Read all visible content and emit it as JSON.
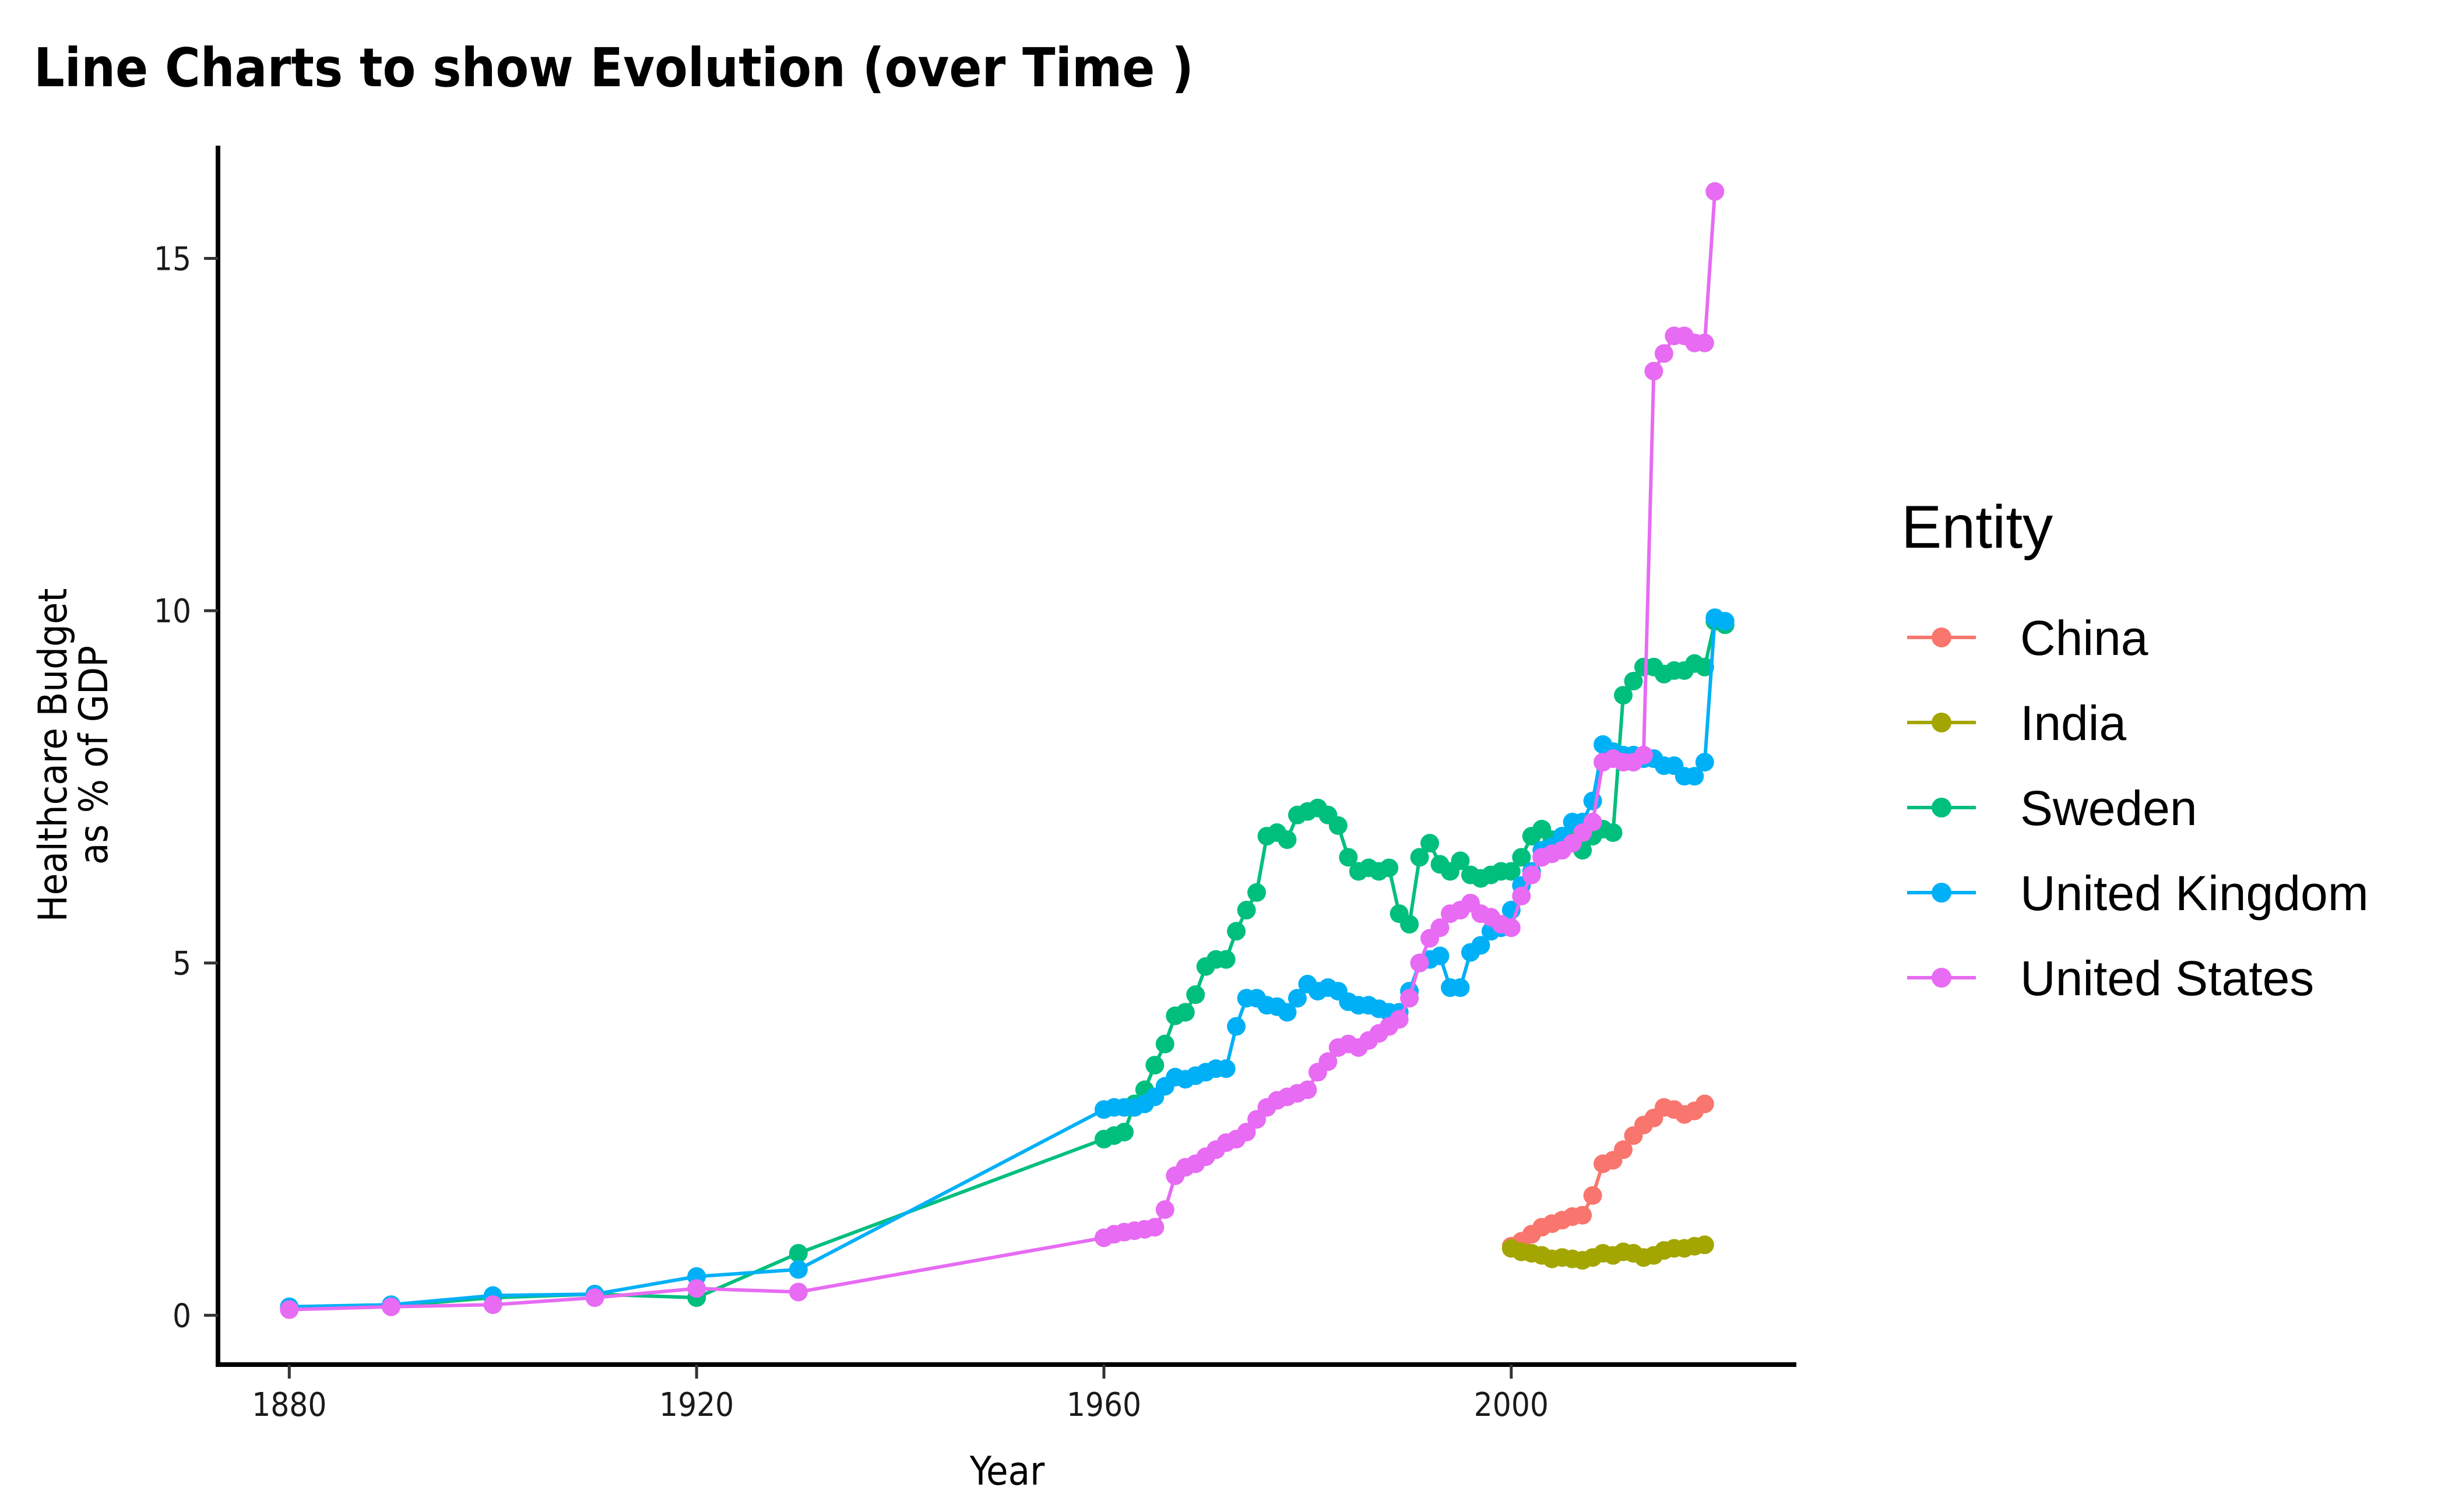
{
  "chart_data": {
    "type": "line",
    "title": "Line Charts to show Evolution (over Time )",
    "xlabel": "Year",
    "ylabel": [
      "Healthcare Budget",
      "as % of GDP"
    ],
    "xlim": [
      1873,
      2028
    ],
    "ylim": [
      -0.7,
      16.6
    ],
    "xticks": [
      1880,
      1920,
      1960,
      2000
    ],
    "yticks": [
      0,
      5,
      10,
      15
    ],
    "grid": false,
    "legend": {
      "title": "Entity",
      "placement": "right"
    },
    "series": [
      {
        "name": "China",
        "color": "#F8766D",
        "x": [
          2000,
          2001,
          2002,
          2003,
          2004,
          2005,
          2006,
          2007,
          2008,
          2009,
          2010,
          2011,
          2012,
          2013,
          2014,
          2015,
          2016,
          2017,
          2018,
          2019
        ],
        "y": [
          0.98,
          1.05,
          1.15,
          1.25,
          1.3,
          1.35,
          1.4,
          1.42,
          1.7,
          2.15,
          2.2,
          2.35,
          2.55,
          2.7,
          2.8,
          2.95,
          2.92,
          2.85,
          2.9,
          3.0
        ]
      },
      {
        "name": "India",
        "color": "#A3A500",
        "x": [
          2000,
          2001,
          2002,
          2003,
          2004,
          2005,
          2006,
          2007,
          2008,
          2009,
          2010,
          2011,
          2012,
          2013,
          2014,
          2015,
          2016,
          2017,
          2018,
          2019
        ],
        "y": [
          0.95,
          0.9,
          0.88,
          0.85,
          0.8,
          0.82,
          0.8,
          0.78,
          0.82,
          0.88,
          0.85,
          0.9,
          0.88,
          0.82,
          0.85,
          0.92,
          0.95,
          0.95,
          0.98,
          1.0
        ]
      },
      {
        "name": "Sweden",
        "color": "#00BF7D",
        "x": [
          1880,
          1890,
          1900,
          1910,
          1920,
          1930,
          1960,
          1961,
          1962,
          1963,
          1964,
          1965,
          1966,
          1967,
          1968,
          1969,
          1970,
          1971,
          1972,
          1973,
          1974,
          1975,
          1976,
          1977,
          1978,
          1979,
          1980,
          1981,
          1982,
          1983,
          1984,
          1985,
          1986,
          1987,
          1988,
          1989,
          1990,
          1991,
          1992,
          1993,
          1994,
          1995,
          1996,
          1997,
          1998,
          1999,
          2000,
          2001,
          2002,
          2003,
          2004,
          2005,
          2006,
          2007,
          2008,
          2009,
          2010,
          2011,
          2012,
          2013,
          2014,
          2015,
          2016,
          2017,
          2018,
          2019,
          2020,
          2021
        ],
        "y": [
          0.1,
          0.13,
          0.25,
          0.3,
          0.25,
          0.88,
          2.5,
          2.55,
          2.6,
          3.0,
          3.2,
          3.55,
          3.85,
          4.25,
          4.3,
          4.55,
          4.95,
          5.05,
          5.05,
          5.45,
          5.75,
          6.0,
          6.8,
          6.85,
          6.75,
          7.1,
          7.15,
          7.2,
          7.1,
          6.95,
          6.5,
          6.3,
          6.35,
          6.3,
          6.35,
          5.7,
          5.55,
          6.5,
          6.7,
          6.4,
          6.3,
          6.45,
          6.25,
          6.2,
          6.25,
          6.3,
          6.3,
          6.5,
          6.8,
          6.9,
          6.75,
          6.75,
          6.8,
          6.6,
          6.8,
          6.9,
          6.85,
          8.8,
          9.0,
          9.2,
          9.2,
          9.1,
          9.15,
          9.15,
          9.25,
          9.2,
          9.85,
          9.8
        ]
      },
      {
        "name": "United Kingdom",
        "color": "#00B0F6",
        "x": [
          1880,
          1890,
          1900,
          1910,
          1920,
          1930,
          1960,
          1961,
          1962,
          1963,
          1964,
          1965,
          1966,
          1967,
          1968,
          1969,
          1970,
          1971,
          1972,
          1973,
          1974,
          1975,
          1976,
          1977,
          1978,
          1979,
          1980,
          1981,
          1982,
          1983,
          1984,
          1985,
          1986,
          1987,
          1988,
          1989,
          1990,
          1991,
          1992,
          1993,
          1994,
          1995,
          1996,
          1997,
          1998,
          1999,
          2000,
          2001,
          2002,
          2003,
          2004,
          2005,
          2006,
          2007,
          2008,
          2009,
          2010,
          2011,
          2012,
          2013,
          2014,
          2015,
          2016,
          2017,
          2018,
          2019,
          2020,
          2021
        ],
        "y": [
          0.12,
          0.15,
          0.28,
          0.3,
          0.55,
          0.65,
          2.92,
          2.95,
          2.95,
          2.95,
          3.0,
          3.1,
          3.25,
          3.38,
          3.35,
          3.4,
          3.45,
          3.5,
          3.5,
          4.1,
          4.5,
          4.5,
          4.4,
          4.38,
          4.3,
          4.5,
          4.7,
          4.6,
          4.65,
          4.6,
          4.45,
          4.4,
          4.4,
          4.35,
          4.3,
          4.3,
          4.6,
          5.0,
          5.05,
          5.1,
          4.65,
          4.65,
          5.15,
          5.25,
          5.45,
          5.5,
          5.75,
          6.1,
          6.3,
          6.6,
          6.65,
          6.8,
          7.0,
          7.0,
          7.3,
          8.1,
          8.0,
          7.95,
          7.95,
          7.9,
          7.9,
          7.8,
          7.8,
          7.65,
          7.65,
          7.85,
          9.9,
          9.85
        ]
      },
      {
        "name": "United States",
        "color": "#E76BF3",
        "x": [
          1880,
          1890,
          1900,
          1910,
          1920,
          1930,
          1960,
          1961,
          1962,
          1963,
          1964,
          1965,
          1966,
          1967,
          1968,
          1969,
          1970,
          1971,
          1972,
          1973,
          1974,
          1975,
          1976,
          1977,
          1978,
          1979,
          1980,
          1981,
          1982,
          1983,
          1984,
          1985,
          1986,
          1987,
          1988,
          1989,
          1990,
          1991,
          1992,
          1993,
          1994,
          1995,
          1996,
          1997,
          1998,
          1999,
          2000,
          2001,
          2002,
          2003,
          2004,
          2005,
          2006,
          2007,
          2008,
          2009,
          2010,
          2011,
          2012,
          2013,
          2014,
          2015,
          2016,
          2017,
          2018,
          2019,
          2020
        ],
        "y": [
          0.08,
          0.12,
          0.15,
          0.25,
          0.38,
          0.33,
          1.1,
          1.15,
          1.18,
          1.2,
          1.22,
          1.25,
          1.5,
          1.98,
          2.1,
          2.15,
          2.25,
          2.35,
          2.45,
          2.5,
          2.6,
          2.78,
          2.95,
          3.05,
          3.1,
          3.15,
          3.2,
          3.45,
          3.6,
          3.8,
          3.85,
          3.8,
          3.9,
          4.0,
          4.1,
          4.2,
          4.5,
          5.0,
          5.35,
          5.5,
          5.7,
          5.75,
          5.85,
          5.7,
          5.65,
          5.55,
          5.5,
          5.95,
          6.25,
          6.5,
          6.55,
          6.6,
          6.7,
          6.85,
          7.0,
          7.85,
          7.9,
          7.85,
          7.85,
          7.95,
          13.4,
          13.65,
          13.9,
          13.9,
          13.8,
          13.8,
          15.95
        ]
      }
    ]
  }
}
